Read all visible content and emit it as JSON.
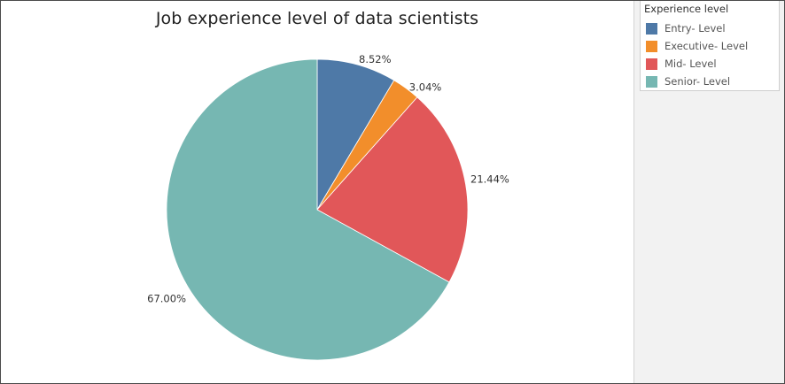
{
  "chart_data": {
    "type": "pie",
    "title": "Job experience level of data scientists",
    "legend_title": "Experience level",
    "legend_position": "right",
    "start_angle": "top-clockwise",
    "slices": [
      {
        "name": "Entry- Level",
        "value": 8.52,
        "label": "8.52%",
        "color": "#4e79a7"
      },
      {
        "name": "Executive- Level",
        "value": 3.04,
        "label": "3.04%",
        "color": "#f28e2b"
      },
      {
        "name": "Mid- Level",
        "value": 21.44,
        "label": "21.44%",
        "color": "#e15759"
      },
      {
        "name": "Senior- Level",
        "value": 67.0,
        "label": "67.00%",
        "color": "#76b7b2"
      }
    ]
  }
}
